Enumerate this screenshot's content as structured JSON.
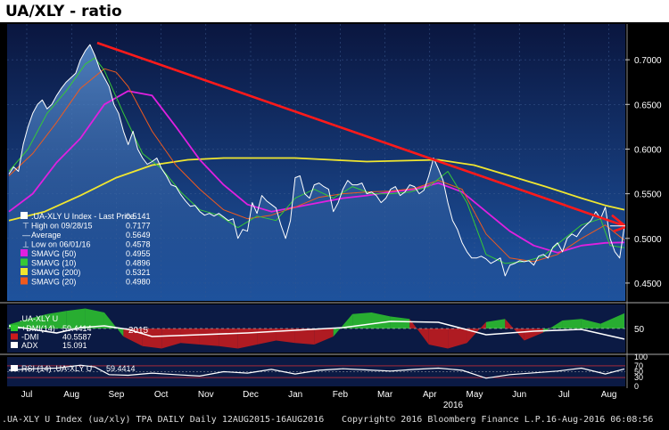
{
  "title": "UA/XLY - ratio",
  "footer": {
    "left": ".UA-XLY U Index (ua/xly) TPA DAILY  Daily 12AUG2015-16AUG2016",
    "center": "Copyright© 2016 Bloomberg Finance L.P.",
    "right": "16-Aug-2016 06:08:56"
  },
  "colors": {
    "background": "#000000",
    "panel_top": "#0c1a4a",
    "panel_bottom": "#1d4e98",
    "price_line": "#ffffff",
    "smavg50": "#e020e0",
    "smavg10": "#36c936",
    "smavg200": "#f0e630",
    "smavg20": "#f05a1e",
    "trend_line": "#ff1a1a",
    "dmi_plus": "#2ec82e",
    "dmi_minus": "#cc1c1c",
    "adx": "#ffffff"
  },
  "chart_data": [
    {
      "type": "line",
      "title": "UA/XLY - ratio",
      "x_ticks": [
        "Jul",
        "Aug",
        "Sep",
        "Oct",
        "Nov",
        "Dec",
        "Jan",
        "Feb",
        "Mar",
        "Apr",
        "May",
        "Jun",
        "Jul",
        "Aug"
      ],
      "years": [
        "2015",
        "2016"
      ],
      "ylim": [
        0.43,
        0.74
      ],
      "y_ticks": [
        "0.4500",
        "0.5000",
        "0.5500",
        "0.6000",
        "0.6500",
        "0.7000"
      ],
      "legend": [
        {
          "label": ".UA-XLY U Index - Last Price",
          "value": "0.5141"
        },
        {
          "label": "High on 09/28/15",
          "value": "0.7177"
        },
        {
          "label": "Average",
          "value": "0.5649"
        },
        {
          "label": "Low on 06/01/16",
          "value": "0.4578"
        },
        {
          "label": "SMAVG (50)",
          "value": "0.4955"
        },
        {
          "label": "SMAVG (10)",
          "value": "0.4896"
        },
        {
          "label": "SMAVG (200)",
          "value": "0.5321"
        },
        {
          "label": "SMAVG (20)",
          "value": "0.4980"
        }
      ],
      "series": [
        {
          "name": ".UA-XLY U Index - Last Price",
          "x": [
            0,
            2,
            4,
            6,
            8,
            10,
            12,
            14,
            16,
            18,
            20,
            22,
            24,
            26,
            28,
            30,
            32,
            34,
            36,
            38,
            40,
            42,
            44,
            46,
            48,
            50,
            52,
            54,
            56,
            58,
            60,
            62,
            64,
            66,
            68,
            70,
            72,
            74,
            76,
            78,
            80,
            82,
            84,
            86,
            88,
            90,
            92,
            94,
            96,
            98,
            100,
            102,
            104,
            106,
            108,
            110,
            112,
            114,
            116,
            118,
            120,
            122,
            124,
            126,
            128,
            130,
            132,
            134,
            136,
            138,
            140,
            142,
            144,
            146,
            148,
            150,
            152,
            154,
            156,
            158,
            160,
            162,
            164,
            166,
            168,
            170,
            172,
            174,
            176,
            178,
            180,
            182,
            184,
            186,
            188,
            190,
            192,
            194,
            196,
            198,
            200,
            202,
            204,
            206,
            208,
            210,
            212,
            214,
            216,
            218,
            220,
            222,
            224,
            226,
            228,
            230,
            232,
            234,
            236,
            238,
            240,
            242,
            244,
            246,
            248,
            250,
            252,
            254,
            256,
            258
          ],
          "y": [
            0.572,
            0.58,
            0.575,
            0.605,
            0.625,
            0.64,
            0.65,
            0.655,
            0.645,
            0.65,
            0.66,
            0.668,
            0.675,
            0.68,
            0.685,
            0.7,
            0.71,
            0.717,
            0.705,
            0.69,
            0.68,
            0.67,
            0.65,
            0.64,
            0.62,
            0.605,
            0.62,
            0.6,
            0.59,
            0.583,
            0.586,
            0.59,
            0.578,
            0.57,
            0.56,
            0.558,
            0.549,
            0.542,
            0.536,
            0.537,
            0.53,
            0.526,
            0.528,
            0.525,
            0.528,
            0.524,
            0.52,
            0.522,
            0.5,
            0.51,
            0.508,
            0.54,
            0.528,
            0.548,
            0.542,
            0.538,
            0.534,
            0.515,
            0.5,
            0.52,
            0.568,
            0.57,
            0.55,
            0.545,
            0.56,
            0.562,
            0.558,
            0.555,
            0.53,
            0.54,
            0.555,
            0.565,
            0.56,
            0.56,
            0.562,
            0.55,
            0.552,
            0.548,
            0.54,
            0.545,
            0.555,
            0.558,
            0.548,
            0.552,
            0.56,
            0.558,
            0.55,
            0.554,
            0.57,
            0.59,
            0.578,
            0.565,
            0.54,
            0.52,
            0.51,
            0.495,
            0.485,
            0.478,
            0.478,
            0.48,
            0.477,
            0.472,
            0.475,
            0.478,
            0.458,
            0.47,
            0.472,
            0.475,
            0.474,
            0.475,
            0.47,
            0.48,
            0.482,
            0.478,
            0.49,
            0.495,
            0.485,
            0.5,
            0.505,
            0.502,
            0.51,
            0.515,
            0.52,
            0.53,
            0.522,
            0.535,
            0.5,
            0.485,
            0.478,
            0.514
          ]
        },
        {
          "name": "SMAVG (50)",
          "x": [
            0,
            10,
            20,
            30,
            40,
            50,
            60,
            70,
            80,
            90,
            100,
            110,
            120,
            130,
            140,
            150,
            160,
            170,
            180,
            190,
            200,
            210,
            220,
            230,
            240,
            250,
            258
          ],
          "y": [
            0.53,
            0.55,
            0.585,
            0.612,
            0.65,
            0.665,
            0.66,
            0.625,
            0.588,
            0.56,
            0.538,
            0.53,
            0.535,
            0.54,
            0.545,
            0.548,
            0.552,
            0.555,
            0.562,
            0.552,
            0.53,
            0.508,
            0.492,
            0.484,
            0.492,
            0.495,
            0.4955
          ]
        },
        {
          "name": "SMAVG (10)",
          "x": [
            0,
            8,
            16,
            24,
            32,
            36,
            40,
            48,
            56,
            64,
            72,
            80,
            88,
            96,
            104,
            112,
            120,
            128,
            136,
            144,
            152,
            160,
            168,
            176,
            184,
            192,
            200,
            208,
            216,
            224,
            232,
            240,
            248,
            252,
            258
          ],
          "y": [
            0.575,
            0.6,
            0.64,
            0.665,
            0.695,
            0.702,
            0.688,
            0.64,
            0.595,
            0.578,
            0.552,
            0.532,
            0.526,
            0.512,
            0.525,
            0.52,
            0.545,
            0.555,
            0.545,
            0.558,
            0.55,
            0.55,
            0.552,
            0.558,
            0.575,
            0.54,
            0.482,
            0.472,
            0.474,
            0.48,
            0.498,
            0.515,
            0.522,
            0.492,
            0.4896
          ]
        },
        {
          "name": "SMAVG (200)",
          "x": [
            0,
            15,
            30,
            45,
            60,
            75,
            90,
            105,
            120,
            135,
            150,
            165,
            180,
            195,
            210,
            225,
            240,
            250,
            258
          ],
          "y": [
            0.52,
            0.53,
            0.548,
            0.568,
            0.582,
            0.588,
            0.59,
            0.59,
            0.59,
            0.588,
            0.586,
            0.587,
            0.588,
            0.582,
            0.57,
            0.558,
            0.545,
            0.537,
            0.5321
          ]
        },
        {
          "name": "SMAVG (20)",
          "x": [
            0,
            10,
            20,
            30,
            40,
            45,
            50,
            60,
            70,
            80,
            90,
            100,
            110,
            120,
            130,
            140,
            150,
            160,
            170,
            180,
            190,
            200,
            210,
            220,
            230,
            240,
            250,
            258
          ],
          "y": [
            0.57,
            0.595,
            0.63,
            0.668,
            0.69,
            0.686,
            0.67,
            0.62,
            0.582,
            0.555,
            0.532,
            0.522,
            0.526,
            0.535,
            0.546,
            0.55,
            0.552,
            0.553,
            0.556,
            0.565,
            0.555,
            0.505,
            0.478,
            0.474,
            0.482,
            0.5,
            0.515,
            0.498
          ]
        },
        {
          "name": "Trend line",
          "x": [
            37,
            258
          ],
          "y": [
            0.719,
            0.514
          ]
        }
      ]
    },
    {
      "type": "area",
      "title": ".UA-XLY U",
      "y_ticks": [
        "50"
      ],
      "legend": [
        {
          "label": "+DMI(14)",
          "value": "59.4414"
        },
        {
          "label": "-DMI",
          "value": "40.5587"
        },
        {
          "label": "ADX",
          "value": "15.091"
        }
      ],
      "series": [
        {
          "name": "+DMI(14) minus -DMI",
          "x": [
            0,
            8,
            16,
            24,
            32,
            40,
            48,
            56,
            64,
            72,
            80,
            88,
            96,
            104,
            112,
            120,
            128,
            136,
            144,
            152,
            160,
            168,
            176,
            184,
            192,
            200,
            208,
            216,
            224,
            232,
            240,
            248,
            258
          ],
          "y": [
            5,
            12,
            18,
            22,
            25,
            20,
            -10,
            -22,
            -25,
            -18,
            -20,
            -22,
            -25,
            -20,
            -15,
            -18,
            -20,
            -10,
            18,
            20,
            15,
            12,
            -20,
            -25,
            -18,
            8,
            12,
            -15,
            -5,
            10,
            12,
            6,
            19
          ]
        },
        {
          "name": "ADX",
          "x": [
            0,
            20,
            30,
            40,
            50,
            60,
            80,
            100,
            120,
            140,
            160,
            180,
            200,
            220,
            240,
            258
          ],
          "y": [
            30,
            22,
            28,
            30,
            26,
            18,
            20,
            22,
            25,
            28,
            35,
            34,
            20,
            24,
            26,
            15.091
          ]
        }
      ]
    },
    {
      "type": "line",
      "title": "RSI (14) .UA-XLY U",
      "y_ticks": [
        "100",
        "70",
        "50",
        "30",
        "0"
      ],
      "ylim": [
        0,
        100
      ],
      "legend": [
        {
          "label": "RSI (14) .UA-XLY U",
          "value": "59.4414"
        }
      ],
      "series": [
        {
          "name": "RSI (14) .UA-XLY U",
          "x": [
            0,
            10,
            20,
            30,
            36,
            42,
            50,
            60,
            70,
            80,
            90,
            100,
            110,
            120,
            130,
            140,
            150,
            160,
            170,
            180,
            190,
            200,
            210,
            220,
            230,
            240,
            250,
            258
          ],
          "y": [
            55,
            60,
            62,
            72,
            66,
            40,
            38,
            45,
            40,
            35,
            50,
            45,
            58,
            42,
            55,
            60,
            56,
            52,
            58,
            62,
            55,
            28,
            40,
            46,
            52,
            62,
            42,
            59.4414
          ]
        }
      ]
    }
  ]
}
